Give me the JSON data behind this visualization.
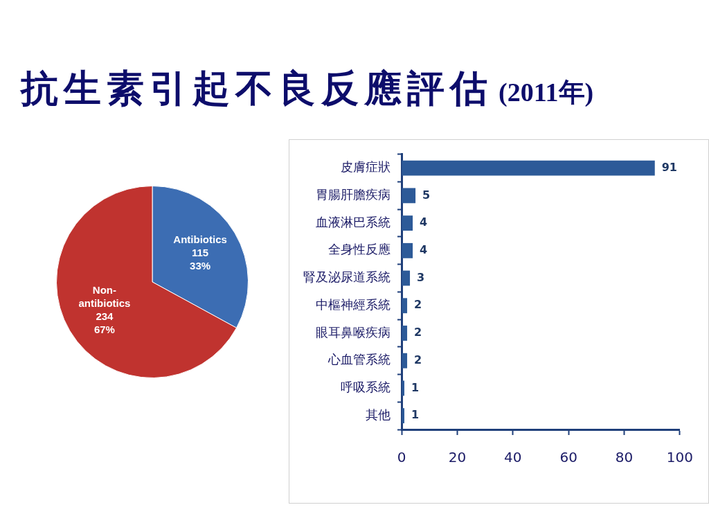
{
  "chart_data": [
    {
      "type": "other",
      "title": "抗生素引起不良反應評估",
      "subtitle": "(2011年)"
    },
    {
      "type": "pie",
      "categories": [
        "Antibiotics",
        "Non-antibiotics"
      ],
      "values": [
        115,
        234
      ],
      "colors": [
        "#3c6db3",
        "#c0332f"
      ],
      "value_labels": [
        "115\n33%",
        "234\n67%"
      ]
    },
    {
      "type": "bar",
      "orientation": "horizontal",
      "categories": [
        "皮膚症狀",
        "胃腸肝膽疾病",
        "血液淋巴系統",
        "全身性反應",
        "腎及泌尿道系統",
        "中樞神經系統",
        "眼耳鼻喉疾病",
        "心血管系統",
        "呼吸系統",
        "其他"
      ],
      "values": [
        91,
        5,
        4,
        4,
        3,
        2,
        2,
        2,
        1,
        1
      ],
      "color": "#2d5a98",
      "xlim": [
        0,
        100
      ],
      "xticks": [
        0,
        20,
        40,
        60,
        80,
        100
      ],
      "data_labels": true
    }
  ]
}
